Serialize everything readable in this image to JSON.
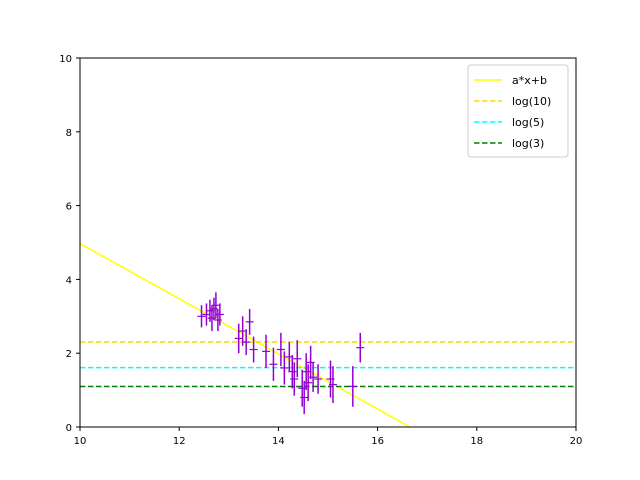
{
  "chart_data": {
    "type": "scatter",
    "title": "",
    "xlabel": "",
    "ylabel": "",
    "xlim": [
      10,
      20
    ],
    "ylim": [
      0,
      10
    ],
    "xticks": [
      "10",
      "12",
      "14",
      "16",
      "18",
      "20"
    ],
    "yticks": [
      "0",
      "2",
      "4",
      "6",
      "8",
      "10"
    ],
    "grid": false,
    "legend_position": "top-right",
    "points": {
      "color": "#9400d3",
      "data": [
        {
          "x": 12.45,
          "y": 3.0,
          "err": 0.3
        },
        {
          "x": 12.55,
          "y": 3.05,
          "err": 0.3
        },
        {
          "x": 12.62,
          "y": 3.15,
          "err": 0.3
        },
        {
          "x": 12.66,
          "y": 2.95,
          "err": 0.35
        },
        {
          "x": 12.7,
          "y": 3.2,
          "err": 0.3
        },
        {
          "x": 12.74,
          "y": 3.3,
          "err": 0.35
        },
        {
          "x": 12.78,
          "y": 2.9,
          "err": 0.3
        },
        {
          "x": 12.82,
          "y": 3.05,
          "err": 0.3
        },
        {
          "x": 13.2,
          "y": 2.4,
          "err": 0.4
        },
        {
          "x": 13.28,
          "y": 2.6,
          "err": 0.4
        },
        {
          "x": 13.35,
          "y": 2.3,
          "err": 0.35
        },
        {
          "x": 13.42,
          "y": 2.85,
          "err": 0.35
        },
        {
          "x": 13.5,
          "y": 2.1,
          "err": 0.35
        },
        {
          "x": 13.75,
          "y": 2.05,
          "err": 0.45
        },
        {
          "x": 13.9,
          "y": 1.7,
          "err": 0.45
        },
        {
          "x": 14.05,
          "y": 2.1,
          "err": 0.45
        },
        {
          "x": 14.12,
          "y": 1.6,
          "err": 0.45
        },
        {
          "x": 14.22,
          "y": 1.9,
          "err": 0.4
        },
        {
          "x": 14.28,
          "y": 1.5,
          "err": 0.45
        },
        {
          "x": 14.32,
          "y": 1.3,
          "err": 0.45
        },
        {
          "x": 14.38,
          "y": 1.85,
          "err": 0.5
        },
        {
          "x": 14.48,
          "y": 1.05,
          "err": 0.5
        },
        {
          "x": 14.52,
          "y": 0.8,
          "err": 0.45
        },
        {
          "x": 14.56,
          "y": 1.5,
          "err": 0.5
        },
        {
          "x": 14.6,
          "y": 1.2,
          "err": 0.5
        },
        {
          "x": 14.65,
          "y": 1.75,
          "err": 0.45
        },
        {
          "x": 14.7,
          "y": 1.35,
          "err": 0.4
        },
        {
          "x": 14.8,
          "y": 1.3,
          "err": 0.4
        },
        {
          "x": 15.05,
          "y": 1.3,
          "err": 0.5
        },
        {
          "x": 15.1,
          "y": 1.15,
          "err": 0.5
        },
        {
          "x": 15.5,
          "y": 1.1,
          "err": 0.55
        },
        {
          "x": 15.65,
          "y": 2.15,
          "err": 0.4
        }
      ]
    },
    "lines": [
      {
        "name": "a*x+b",
        "kind": "linear",
        "color": "#ffff00",
        "dashed": false,
        "x": [
          10,
          16.65
        ],
        "y": [
          4.97,
          0
        ]
      },
      {
        "name": "log(10)",
        "kind": "hline",
        "color": "#ffd700",
        "dashed": true,
        "y": 2.303
      },
      {
        "name": "log(5)",
        "kind": "hline",
        "color": "#00ffff",
        "dashed": true,
        "y": 1.609
      },
      {
        "name": "log(3)",
        "kind": "hline",
        "color": "#008000",
        "dashed": true,
        "y": 1.099
      }
    ]
  }
}
